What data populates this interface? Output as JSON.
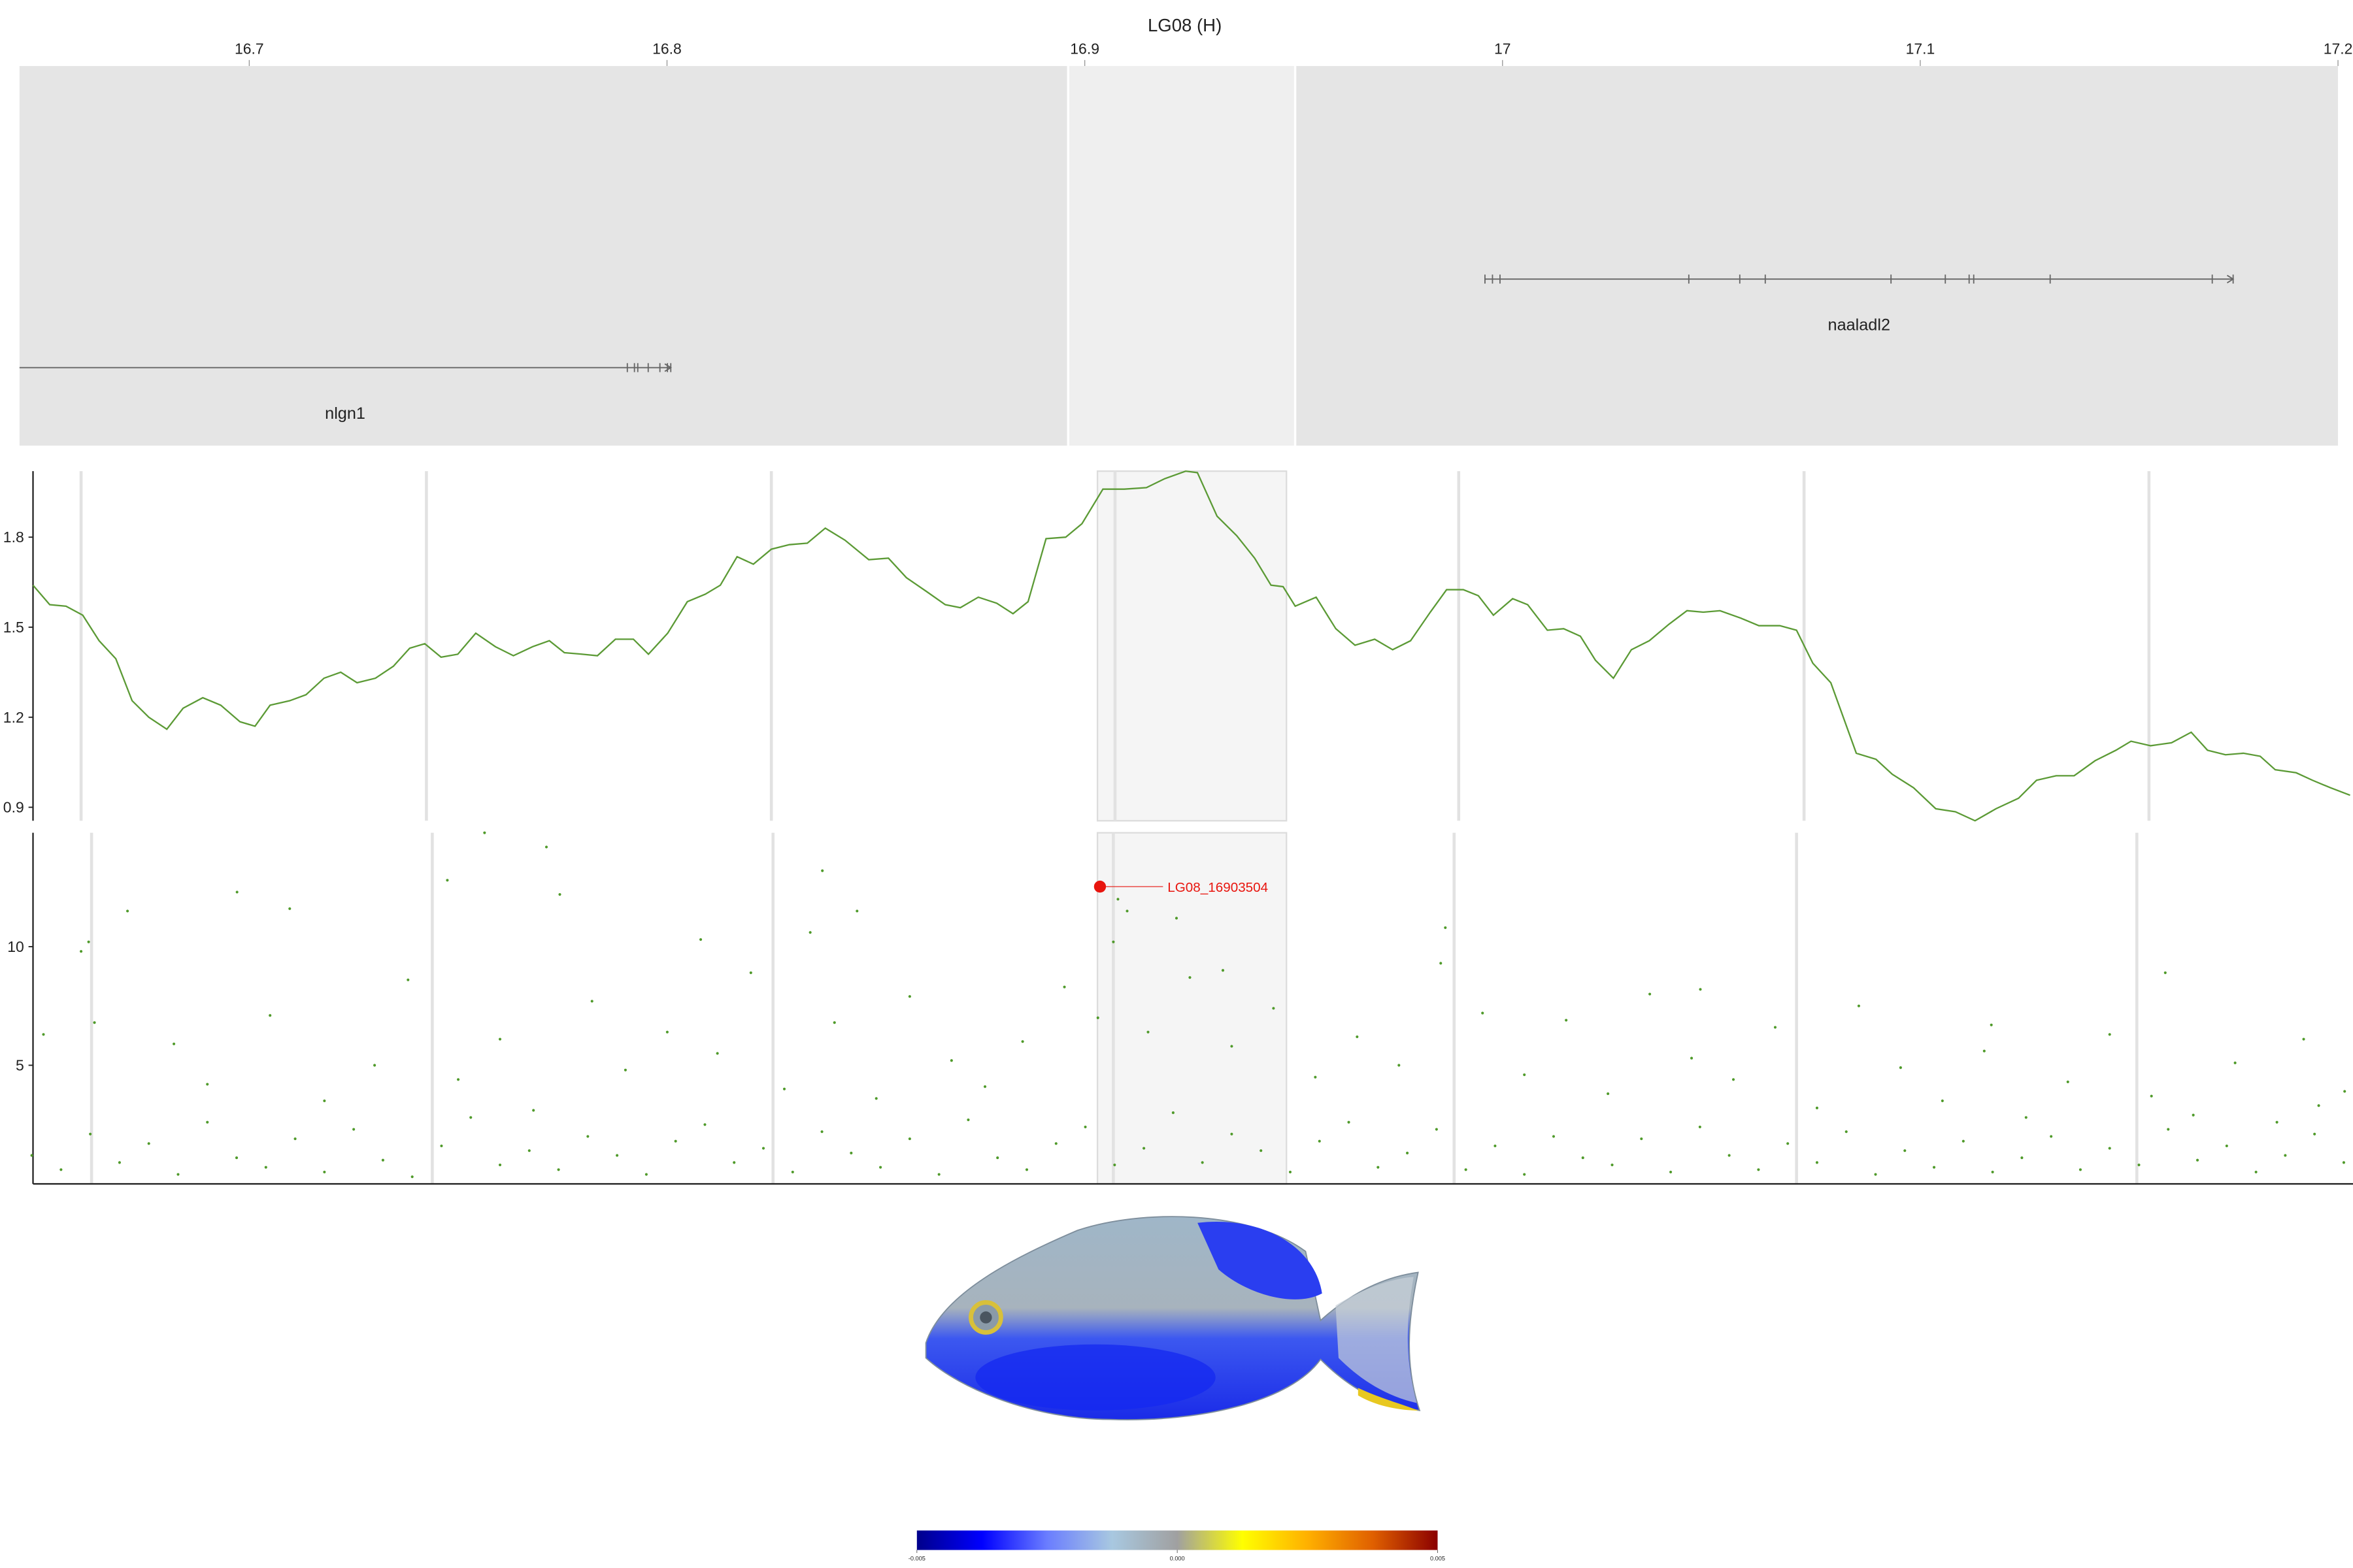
{
  "chart_data": [
    {
      "type": "gene-track",
      "title": "LG08 (H)",
      "xlim": [
        16.645,
        17.2
      ],
      "xticks": [
        16.7,
        16.8,
        16.9,
        17,
        17.1,
        17.2
      ],
      "highlight": [
        16.8963,
        16.9501
      ],
      "panel_color": "#e5e5e5",
      "highlight_color": "#efefef",
      "gene_color": "#666666",
      "genes": [
        {
          "name": "nlgn1",
          "start": 16.645,
          "end": 16.8009,
          "exons": [
            16.7905,
            16.7922,
            16.793,
            16.7955,
            16.7983,
            16.8001,
            16.8009
          ]
        },
        {
          "name": "naaladl2",
          "start": 16.9958,
          "end": 17.1749,
          "exons": [
            16.9958,
            16.9976,
            16.9994,
            17.0446,
            17.0568,
            17.0629,
            17.093,
            17.106,
            17.1117,
            17.1128,
            17.1311,
            17.1699,
            17.1749
          ]
        }
      ]
    },
    {
      "type": "line",
      "xlim": [
        16.6483,
        17.2032
      ],
      "ylim": [
        0.855,
        2.02
      ],
      "yticks": [
        0.9,
        1.2,
        1.5,
        1.8
      ],
      "xgrid": [
        16.6598,
        16.7424,
        16.8249,
        16.9071,
        16.9893,
        17.0719,
        17.1544
      ],
      "highlight": [
        16.9029,
        16.9481
      ],
      "color": "#5b9a35",
      "x": [
        16.6483,
        16.6523,
        16.6562,
        16.6602,
        16.6641,
        16.6681,
        16.672,
        16.676,
        16.6803,
        16.6842,
        16.6889,
        16.6932,
        16.6978,
        16.7014,
        16.705,
        16.7097,
        16.7136,
        16.7179,
        16.7219,
        16.7258,
        16.7302,
        16.7345,
        16.7384,
        16.742,
        16.7459,
        16.7499,
        16.7542,
        16.7589,
        16.7632,
        16.7678,
        16.7718,
        16.7754,
        16.7797,
        16.7833,
        16.7876,
        16.7919,
        16.7955,
        16.8001,
        16.8048,
        16.8091,
        16.8127,
        16.8167,
        16.8206,
        16.8249,
        16.8292,
        16.8335,
        16.8378,
        16.8425,
        16.8482,
        16.8529,
        16.8572,
        16.8619,
        16.8665,
        16.8701,
        16.8744,
        16.8788,
        16.8827,
        16.8863,
        16.8906,
        16.8953,
        16.8992,
        16.9042,
        16.9093,
        16.9146,
        16.919,
        16.924,
        16.9268,
        16.9315,
        16.9362,
        16.9405,
        16.9444,
        16.9473,
        16.9502,
        16.9552,
        16.9599,
        16.9645,
        16.9692,
        16.9735,
        16.9778,
        16.9825,
        16.9864,
        16.9904,
        16.994,
        16.9976,
        17.0022,
        17.0058,
        17.0105,
        17.0144,
        17.0184,
        17.022,
        17.0263,
        17.0306,
        17.0349,
        17.0396,
        17.0439,
        17.0478,
        17.0518,
        17.0568,
        17.0611,
        17.0661,
        17.0701,
        17.074,
        17.0783,
        17.0844,
        17.0891,
        17.093,
        17.0981,
        17.1034,
        17.1081,
        17.1128,
        17.1178,
        17.1232,
        17.1275,
        17.1322,
        17.1365,
        17.1415,
        17.1465,
        17.1501,
        17.1548,
        17.1598,
        17.1645,
        17.1684,
        17.1727,
        17.177,
        17.181,
        17.1846,
        17.1896,
        17.1935,
        17.1978,
        17.2025
      ],
      "values": [
        1.64,
        1.575,
        1.57,
        1.54,
        1.455,
        1.395,
        1.255,
        1.2,
        1.16,
        1.23,
        1.265,
        1.24,
        1.185,
        1.17,
        1.24,
        1.255,
        1.275,
        1.33,
        1.35,
        1.315,
        1.33,
        1.37,
        1.43,
        1.445,
        1.4,
        1.41,
        1.48,
        1.435,
        1.405,
        1.435,
        1.455,
        1.415,
        1.41,
        1.405,
        1.46,
        1.46,
        1.41,
        1.48,
        1.585,
        1.61,
        1.64,
        1.735,
        1.71,
        1.76,
        1.775,
        1.78,
        1.83,
        1.79,
        1.725,
        1.73,
        1.665,
        1.62,
        1.575,
        1.565,
        1.6,
        1.58,
        1.545,
        1.585,
        1.795,
        1.8,
        1.845,
        1.96,
        1.96,
        1.965,
        1.995,
        2.02,
        2.015,
        1.87,
        1.805,
        1.73,
        1.64,
        1.635,
        1.57,
        1.6,
        1.495,
        1.44,
        1.46,
        1.425,
        1.455,
        1.55,
        1.625,
        1.625,
        1.605,
        1.54,
        1.595,
        1.575,
        1.49,
        1.495,
        1.47,
        1.39,
        1.33,
        1.425,
        1.455,
        1.51,
        1.555,
        1.55,
        1.555,
        1.53,
        1.505,
        1.505,
        1.49,
        1.38,
        1.315,
        1.08,
        1.06,
        1.01,
        0.965,
        0.895,
        0.885,
        0.855,
        0.895,
        0.93,
        0.99,
        1.005,
        1.005,
        1.055,
        1.09,
        1.12,
        1.105,
        1.115,
        1.15,
        1.09,
        1.075,
        1.08,
        1.07,
        1.025,
        1.015,
        0.99,
        0.965,
        0.94
      ]
    },
    {
      "type": "scatter",
      "xlim": [
        16.6483,
        17.2032
      ],
      "ylim": [
        0,
        14.8
      ],
      "yticks": [
        5,
        10
      ],
      "xgrid": [
        16.6623,
        16.7438,
        16.8253,
        16.9067,
        16.9882,
        17.0701,
        17.1515
      ],
      "highlight": [
        16.9029,
        16.9481
      ],
      "color": "#4f9a2a",
      "x": [
        16.7563,
        16.7711,
        16.7474,
        16.6971,
        16.7097,
        16.6709,
        16.8371,
        16.8454,
        16.7743,
        16.6616,
        16.6598,
        16.9861,
        16.9078,
        16.91,
        16.9067,
        16.808,
        16.8342,
        16.9218,
        16.9329,
        17.0471,
        17.1583,
        17.1914,
        17.1167,
        17.2012,
        16.6508,
        16.663,
        16.682,
        16.69,
        16.705,
        16.718,
        16.73,
        16.738,
        16.75,
        16.76,
        16.768,
        16.782,
        16.79,
        16.8,
        16.812,
        16.82,
        16.828,
        16.84,
        16.85,
        16.858,
        16.868,
        16.876,
        16.885,
        16.895,
        16.903,
        16.915,
        16.925,
        16.935,
        16.945,
        16.955,
        16.965,
        16.975,
        16.985,
        16.995,
        17.005,
        17.015,
        17.025,
        17.035,
        17.045,
        17.055,
        17.065,
        17.075,
        17.085,
        17.095,
        17.105,
        17.115,
        17.125,
        17.135,
        17.145,
        17.155,
        17.165,
        17.175,
        17.185,
        17.195,
        16.648,
        16.655,
        16.662,
        16.669,
        16.676,
        16.683,
        16.69,
        16.697,
        16.704,
        16.711,
        16.718,
        16.725,
        16.732,
        16.739,
        16.746,
        16.753,
        16.76,
        16.767,
        16.774,
        16.781,
        16.788,
        16.795,
        16.802,
        16.809,
        16.816,
        16.823,
        16.83,
        16.837,
        16.844,
        16.851,
        16.858,
        16.865,
        16.872,
        16.879,
        16.886,
        16.893,
        16.9,
        16.907,
        16.914,
        16.921,
        16.928,
        16.935,
        16.942,
        16.949,
        16.956,
        16.963,
        16.97,
        16.977,
        16.984,
        16.991,
        16.998,
        17.005,
        17.012,
        17.019,
        17.026,
        17.033,
        17.04,
        17.047,
        17.054,
        17.061,
        17.068,
        17.075,
        17.082,
        17.089,
        17.096,
        17.103,
        17.11,
        17.117,
        17.124,
        17.131,
        17.138,
        17.145,
        17.152,
        17.159,
        17.166,
        17.173,
        17.18,
        17.187,
        17.194,
        17.201
      ],
      "values": [
        14.8,
        14.2,
        12.8,
        12.3,
        11.6,
        11.5,
        13.2,
        11.5,
        12.2,
        10.2,
        9.8,
        10.8,
        12,
        11.5,
        10.2,
        10.3,
        10.6,
        11.2,
        9,
        8.2,
        8.9,
        6.1,
        6.7,
        3.9,
        6.3,
        6.8,
        5.9,
        4.2,
        7.1,
        3.5,
        5,
        8.6,
        4.4,
        6.1,
        3.1,
        7.7,
        4.8,
        6.4,
        5.5,
        8.9,
        4,
        6.8,
        3.6,
        7.9,
        5.2,
        4.1,
        6,
        8.3,
        7,
        6.4,
        8.7,
        5.8,
        7.4,
        4.5,
        6.2,
        5,
        9.3,
        7.2,
        4.6,
        6.9,
        3.8,
        8,
        5.3,
        4.4,
        6.6,
        3.2,
        7.5,
        4.9,
        3.5,
        5.6,
        2.8,
        4.3,
        6.3,
        3.7,
        2.9,
        5.1,
        2.6,
        3.3,
        1.2,
        0.6,
        2.1,
        0.9,
        1.7,
        0.4,
        2.6,
        1.1,
        0.7,
        1.9,
        0.5,
        2.3,
        1,
        0.3,
        1.6,
        2.8,
        0.8,
        1.4,
        0.6,
        2,
        1.2,
        0.4,
        1.8,
        2.5,
        0.9,
        1.5,
        0.5,
        2.2,
        1.3,
        0.7,
        1.9,
        0.4,
        2.7,
        1.1,
        0.6,
        1.7,
        2.4,
        0.8,
        1.5,
        3,
        0.9,
        2.1,
        1.4,
        0.5,
        1.8,
        2.6,
        0.7,
        1.3,
        2.3,
        0.6,
        1.6,
        0.4,
        2,
        1.1,
        0.8,
        1.9,
        0.5,
        2.4,
        1.2,
        0.6,
        1.7,
        0.9,
        2.2,
        0.4,
        1.4,
        0.7,
        1.8,
        0.5,
        1.1,
        2,
        0.6,
        1.5,
        0.8,
        2.3,
        1,
        1.6,
        0.5,
        1.2,
        2.1,
        0.9
      ],
      "highlight_point": {
        "label": "LG08_16903504",
        "x": 16.9035,
        "y": 12.53,
        "color": "#e8150e"
      }
    },
    {
      "type": "colorbar",
      "xlim": [
        -0.005,
        0.005
      ],
      "xticks": [
        -0.005,
        {
          "value": 0,
          "label": "0.000"
        },
        0.005
      ],
      "colors": [
        "#00008b",
        "#0000ff",
        "#6a7dff",
        "#a8c8e0",
        "#a0a0a0",
        "#ffff00",
        "#ffb000",
        "#e06000",
        "#8b0000"
      ]
    }
  ]
}
